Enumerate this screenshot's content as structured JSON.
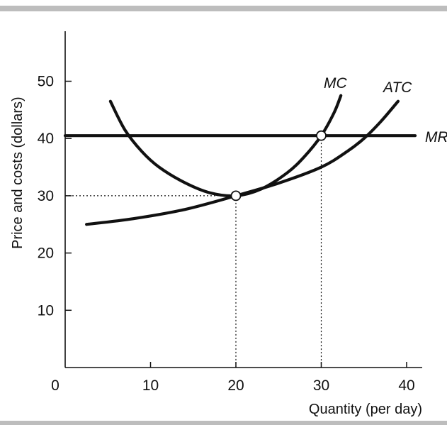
{
  "chart_data": {
    "type": "line",
    "xlabel": "Quantity (per day)",
    "ylabel": "Price and costs (dollars)",
    "origin_label": "0",
    "xlim": [
      0,
      42
    ],
    "ylim": [
      0,
      58
    ],
    "x_ticks": [
      10,
      20,
      30,
      40
    ],
    "y_ticks": [
      10,
      20,
      30,
      40,
      50
    ],
    "series": [
      {
        "name": "MR",
        "points": [
          [
            0,
            40.5
          ],
          [
            41,
            40.5
          ]
        ]
      },
      {
        "name": "MC",
        "points": [
          [
            5.3,
            46.5
          ],
          [
            7,
            41.5
          ],
          [
            9,
            37.7
          ],
          [
            11,
            35
          ],
          [
            14,
            32.3
          ],
          [
            17,
            30.5
          ],
          [
            20,
            30
          ],
          [
            23,
            31.2
          ],
          [
            26,
            34
          ],
          [
            28,
            36.8
          ],
          [
            30,
            40.5
          ],
          [
            31.5,
            44.5
          ],
          [
            32.3,
            47.5
          ]
        ]
      },
      {
        "name": "ATC",
        "points": [
          [
            2.5,
            25
          ],
          [
            8,
            26
          ],
          [
            14,
            27.6
          ],
          [
            20,
            30
          ],
          [
            25,
            32.2
          ],
          [
            30,
            35
          ],
          [
            33,
            37.7
          ],
          [
            35,
            40
          ],
          [
            37,
            43
          ],
          [
            39,
            46.5
          ]
        ]
      }
    ],
    "points_marked": [
      {
        "x": 20,
        "y": 30
      },
      {
        "x": 30,
        "y": 40.5
      }
    ],
    "guides": [
      {
        "from": [
          0,
          30
        ],
        "to": [
          20,
          30
        ]
      },
      {
        "from": [
          20,
          30
        ],
        "to": [
          20,
          0
        ]
      },
      {
        "from": [
          30,
          40.5
        ],
        "to": [
          30,
          0
        ]
      }
    ]
  }
}
